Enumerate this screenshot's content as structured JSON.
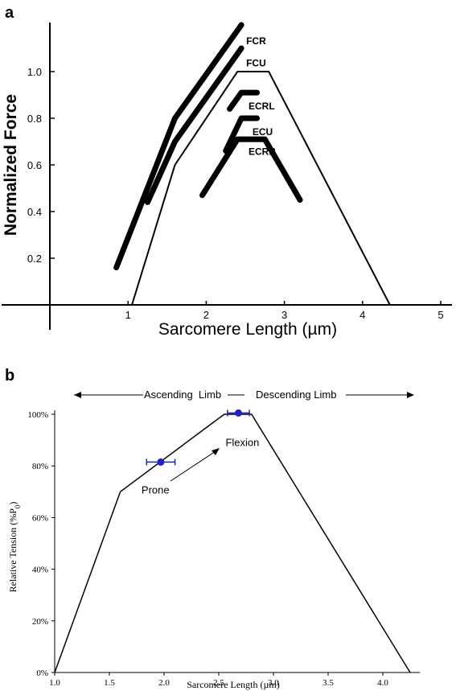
{
  "chart_data": [
    {
      "panel_label": "a",
      "type": "line",
      "xlabel": "Sarcomere Length (µm)",
      "ylabel": "Normalized Force",
      "xlim": [
        0,
        5
      ],
      "ylim": [
        0,
        1.2
      ],
      "x_ticks": [
        1,
        2,
        3,
        4,
        5
      ],
      "y_ticks": [
        0.2,
        0.4,
        0.6,
        0.8,
        1.0
      ],
      "y_tick_labels": [
        "0.2",
        "0.4",
        "0.6",
        "0.8",
        "1.0"
      ],
      "baseline_curve": {
        "x": [
          1.05,
          1.6,
          2.4,
          2.8,
          4.35,
          5.0
        ],
        "y": [
          0.0,
          0.6,
          1.0,
          1.0,
          0.0,
          0.0
        ]
      },
      "series": [
        {
          "name": "FCR",
          "x": [
            0.85,
            1.6,
            2.45
          ],
          "y": [
            0.16,
            0.8,
            1.2
          ]
        },
        {
          "name": "FCU",
          "x": [
            1.25,
            1.6,
            2.45
          ],
          "y": [
            0.44,
            0.7,
            1.1
          ]
        },
        {
          "name": "ECRL",
          "x": [
            2.3,
            2.45,
            2.65
          ],
          "y": [
            0.84,
            0.91,
            0.91
          ]
        },
        {
          "name": "ECU",
          "x": [
            2.25,
            2.45,
            2.65
          ],
          "y": [
            0.66,
            0.8,
            0.8
          ]
        },
        {
          "name": "ECRB",
          "x": [
            1.95,
            2.4,
            2.75,
            3.2
          ],
          "y": [
            0.47,
            0.71,
            0.71,
            0.45
          ]
        }
      ]
    },
    {
      "panel_label": "b",
      "type": "line",
      "xlabel": "Sarcomere Length (µm)",
      "ylabel": "Relative Tension (%P",
      "ylabel_sub": "0",
      "ylabel_close": ")",
      "xlim": [
        1.0,
        4.25
      ],
      "ylim": [
        0,
        100
      ],
      "x_ticks": [
        1.0,
        1.5,
        2.0,
        2.5,
        3.0,
        3.5,
        4.0
      ],
      "x_tick_labels": [
        "1.0",
        "1.5",
        "2.0",
        "2.5",
        "3.0",
        "3.5",
        "4.0"
      ],
      "y_ticks": [
        0,
        20,
        40,
        60,
        80,
        100
      ],
      "y_tick_labels": [
        "0%",
        "20%",
        "40%",
        "60%",
        "80%",
        "100%"
      ],
      "curve": {
        "x": [
          1.0,
          1.6,
          2.55,
          2.8,
          4.25
        ],
        "y": [
          0,
          70,
          100,
          100,
          0
        ]
      },
      "points": [
        {
          "label": "Prone",
          "x": 1.97,
          "y": 81.5,
          "xerr": 0.13,
          "color": "#2020c8"
        },
        {
          "label": "Flexion",
          "x": 2.68,
          "y": 100.5,
          "xerr": 0.1,
          "color": "#2020c8"
        }
      ],
      "limb_labels": {
        "ascending": "Ascending  Limb",
        "descending": "Descending Limb"
      }
    }
  ]
}
